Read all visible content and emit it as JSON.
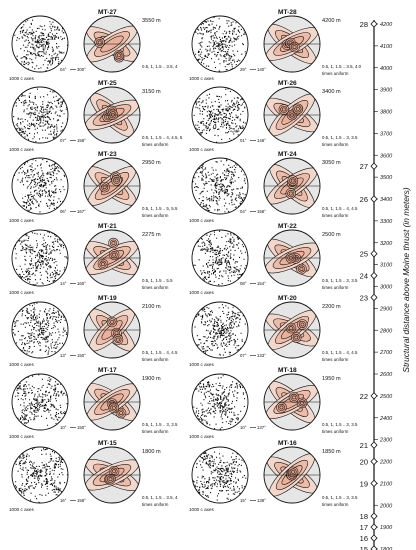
{
  "samples": [
    {
      "id": "MT-27",
      "height": "3550 m",
      "contours": "0.5, 1, 1.5 .. 3.5, 4",
      "caxes": "1000 c axes",
      "trend": "04°",
      "trend2": "300°",
      "uniform": ""
    },
    {
      "id": "MT-28",
      "height": "4200 m",
      "contours": "0.5, 1, 1.5 .. 3.5, 4.0",
      "caxes": "1000 c axes",
      "trend": "29°",
      "trend2": "140°",
      "uniform": "times uniform"
    },
    {
      "id": "MT-25",
      "height": "3150 m",
      "contours": "0.5, 1, 1.5 .. 4, 4.5, 5",
      "caxes": "1000 c axes",
      "trend": "07°",
      "trend2": "158°",
      "uniform": "times uniform"
    },
    {
      "id": "MT-26",
      "height": "3400 m",
      "contours": "0.5, 1, 1.5 .. 3, 3.5",
      "caxes": "1000 c axes",
      "trend": "01°",
      "trend2": "148°",
      "uniform": "times uniform"
    },
    {
      "id": "MT-23",
      "height": "2950 m",
      "contours": "0.5, 1, 1.5 .. 5, 5.5",
      "caxes": "1000 c axes",
      "trend": "06°",
      "trend2": "167°",
      "uniform": "times uniform"
    },
    {
      "id": "MT-24",
      "height": "3050 m",
      "contours": "0.5, 1, 1.5 .. 4, 4.5",
      "caxes": "1000 c axes",
      "trend": "04°",
      "trend2": "158°",
      "uniform": "times uniform"
    },
    {
      "id": "MT-21",
      "height": "2275 m",
      "contours": "0.5, 1, 1.5 .. 5.5",
      "caxes": "1000 c axes",
      "trend": "14°",
      "trend2": "160°",
      "uniform": "times uniform"
    },
    {
      "id": "MT-22",
      "height": "2500 m",
      "contours": "0.5, 1, 1.5 .. 3, 3.5",
      "caxes": "1000 c axes",
      "trend": "08°",
      "trend2": "154°",
      "uniform": "times uniform"
    },
    {
      "id": "MT-19",
      "height": "2100 m",
      "contours": "0.5, 1, 1.5 .. 4, 4.5",
      "caxes": "1000 c axes",
      "trend": "13°",
      "trend2": "150°",
      "uniform": "times uniform"
    },
    {
      "id": "MT-20",
      "height": "2200 m",
      "contours": "0.5, 1, 1.5 .. 4, 4.5",
      "caxes": "1000 c axes",
      "trend": "07°",
      "trend2": "133°",
      "uniform": "times uniform"
    },
    {
      "id": "MT-17",
      "height": "1900 m",
      "contours": "0.5, 1, 1.5 .. 3, 3.5",
      "caxes": "1000 c axes",
      "trend": "10°",
      "trend2": "150°",
      "uniform": "times uniform"
    },
    {
      "id": "MT-18",
      "height": "1950 m",
      "contours": "0.5, 1, 1.5 .. 3, 3.5",
      "caxes": "1000 c axes",
      "trend": "10°",
      "trend2": "137°",
      "uniform": "times uniform"
    },
    {
      "id": "MT-15",
      "height": "1800 m",
      "contours": "0.5, 1, 1.5 .. 3.5, 4",
      "caxes": "1000 c axes",
      "trend": "16°",
      "trend2": "158°",
      "uniform": "times uniform"
    },
    {
      "id": "MT-16",
      "height": "1850 m",
      "contours": "0.5, 1, 1.5 .. 3, 3.5",
      "caxes": "1000 c axes",
      "trend": "15°",
      "trend2": "138°",
      "uniform": "times uniform"
    }
  ],
  "scale": {
    "title": "Structural distance above Moine thrust (in meters)",
    "min": 1800,
    "max": 4200,
    "ticks": [
      4200,
      4100,
      4000,
      3900,
      3800,
      3700,
      3600,
      3500,
      3400,
      3300,
      3200,
      3100,
      3000,
      2900,
      2800,
      2700,
      2600,
      2500,
      2400,
      2300,
      2200,
      2100,
      2000,
      1900,
      1800
    ],
    "markers": [
      {
        "label": "28",
        "value": 4200
      },
      {
        "label": "27",
        "value": 3550
      },
      {
        "label": "26",
        "value": 3400
      },
      {
        "label": "25",
        "value": 3150
      },
      {
        "label": "24",
        "value": 3050
      },
      {
        "label": "23",
        "value": 2950
      },
      {
        "label": "22",
        "value": 2500
      },
      {
        "label": "21",
        "value": 2275
      },
      {
        "label": "20",
        "value": 2200
      },
      {
        "label": "19",
        "value": 2100
      },
      {
        "label": "18",
        "value": 1950
      },
      {
        "label": "17",
        "value": 1900
      },
      {
        "label": "16",
        "value": 1850
      },
      {
        "label": "15",
        "value": 1800
      }
    ]
  },
  "colors": {
    "ink": "#111111",
    "fill_low": "#f2d7cd",
    "fill_high": "#e8a58e",
    "net_bg": "#e6e6e6"
  }
}
